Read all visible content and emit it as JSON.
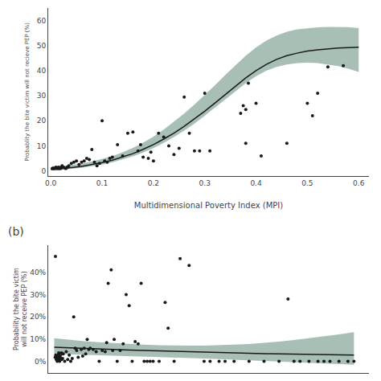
{
  "chart_data": [
    {
      "type": "scatter",
      "xlabel": "Multidimensional Poverty Index (MPI)",
      "ylabel": "Probablity the bite victim will not recieve PEP (%)",
      "xlim": [
        -0.005,
        0.62
      ],
      "ylim": [
        -2,
        65
      ],
      "xticks": [
        {
          "value": 0.0,
          "label": "0.0"
        },
        0.1,
        0.2,
        0.3,
        0.4,
        0.5,
        0.6
      ],
      "yticks": [
        0,
        10,
        20,
        30,
        40,
        50,
        60
      ],
      "grid": false,
      "series": [
        {
          "type": "band",
          "color": "#a8bfb5",
          "x": [
            0.0,
            0.02,
            0.04,
            0.06,
            0.08,
            0.1,
            0.12,
            0.14,
            0.16,
            0.18,
            0.2,
            0.22,
            0.24,
            0.26,
            0.28,
            0.3,
            0.32,
            0.34,
            0.36,
            0.38,
            0.4,
            0.42,
            0.44,
            0.46,
            0.48,
            0.5,
            0.52,
            0.54,
            0.56,
            0.58,
            0.6
          ],
          "lower": [
            0.3,
            0.5,
            0.8,
            1.2,
            1.8,
            2.5,
            3.4,
            4.5,
            5.8,
            7.3,
            9.1,
            11.2,
            13.5,
            16.1,
            18.9,
            22.0,
            25.2,
            28.5,
            31.8,
            35.0,
            37.8,
            40.0,
            41.5,
            42.5,
            43.0,
            43.2,
            43.0,
            42.5,
            41.8,
            40.8,
            39.5
          ],
          "upper": [
            1.2,
            1.7,
            2.2,
            2.9,
            3.7,
            4.7,
            5.9,
            7.4,
            9.2,
            11.3,
            13.7,
            16.5,
            19.6,
            22.9,
            26.5,
            30.2,
            34.2,
            38.3,
            42.2,
            46.0,
            49.3,
            52.0,
            54.0,
            55.5,
            56.5,
            57.0,
            57.3,
            57.5,
            57.5,
            57.4,
            57.0
          ]
        },
        {
          "type": "line",
          "color": "#1a1a1a",
          "x": [
            0.0,
            0.02,
            0.04,
            0.06,
            0.08,
            0.1,
            0.12,
            0.14,
            0.16,
            0.18,
            0.2,
            0.22,
            0.24,
            0.26,
            0.28,
            0.3,
            0.32,
            0.34,
            0.36,
            0.38,
            0.4,
            0.42,
            0.44,
            0.46,
            0.48,
            0.5,
            0.52,
            0.54,
            0.56,
            0.58,
            0.6
          ],
          "values": [
            0.6,
            0.9,
            1.3,
            1.8,
            2.5,
            3.3,
            4.3,
            5.5,
            6.9,
            8.6,
            10.5,
            12.7,
            15.1,
            17.8,
            20.7,
            23.8,
            27.1,
            30.4,
            33.8,
            37.1,
            40.0,
            42.5,
            44.5,
            46.0,
            47.0,
            47.8,
            48.3,
            48.7,
            49.0,
            49.2,
            49.4
          ]
        },
        {
          "type": "scatter",
          "color": "#1a1a1a",
          "x": [
            0.003,
            0.004,
            0.005,
            0.006,
            0.007,
            0.008,
            0.01,
            0.01,
            0.012,
            0.013,
            0.015,
            0.015,
            0.016,
            0.017,
            0.018,
            0.02,
            0.02,
            0.022,
            0.025,
            0.028,
            0.03,
            0.032,
            0.035,
            0.04,
            0.045,
            0.05,
            0.055,
            0.06,
            0.065,
            0.07,
            0.075,
            0.08,
            0.085,
            0.09,
            0.095,
            0.1,
            0.105,
            0.11,
            0.115,
            0.12,
            0.13,
            0.14,
            0.15,
            0.16,
            0.17,
            0.175,
            0.18,
            0.19,
            0.195,
            0.2,
            0.21,
            0.22,
            0.23,
            0.24,
            0.25,
            0.26,
            0.27,
            0.28,
            0.29,
            0.3,
            0.31,
            0.37,
            0.375,
            0.38,
            0.385,
            0.38,
            0.4,
            0.41,
            0.46,
            0.5,
            0.51,
            0.52,
            0.54,
            0.57
          ],
          "values": [
            1.0,
            1.0,
            1.0,
            1.0,
            1.0,
            1.0,
            1.0,
            1.5,
            1.0,
            1.0,
            1.0,
            1.5,
            1.0,
            1.0,
            1.0,
            1.0,
            1.5,
            2.0,
            1.5,
            1.0,
            1.0,
            1.5,
            2.0,
            3.0,
            3.5,
            4.0,
            2.5,
            3.5,
            4.0,
            5.0,
            4.5,
            8.5,
            3.5,
            2.0,
            3.0,
            20.0,
            4.0,
            3.5,
            5.0,
            5.5,
            10.5,
            6.0,
            15.0,
            15.5,
            8.0,
            10.5,
            5.5,
            5.0,
            7.5,
            4.0,
            15.0,
            13.5,
            10.0,
            6.5,
            9.0,
            29.5,
            15.0,
            8.0,
            8.0,
            31.0,
            8.0,
            23.0,
            26.0,
            24.5,
            35.0,
            11.0,
            27.0,
            6.0,
            11.0,
            27.0,
            22.0,
            31.0,
            41.5,
            42.0
          ]
        }
      ]
    },
    {
      "type": "scatter",
      "ylabel": "Probability the bite victim\nwill not receive PEP (%)",
      "xlim": [
        -0.02,
        1.05
      ],
      "ylim": [
        -5,
        52
      ],
      "yticks": [
        {
          "value": 0,
          "label": "0%"
        },
        {
          "value": 10,
          "label": "10%"
        },
        {
          "value": 20,
          "label": "20%"
        },
        {
          "value": 30,
          "label": "30%"
        },
        {
          "value": 40,
          "label": "40%"
        }
      ],
      "tick_labels": "y",
      "grid": false,
      "annotations": [
        {
          "text": "(b)"
        }
      ],
      "series": [
        {
          "type": "band",
          "color": "#a8bfb5",
          "x": [
            0.0,
            0.05,
            0.1,
            0.15,
            0.2,
            0.25,
            0.3,
            0.35,
            0.4,
            0.45,
            0.5,
            0.55,
            0.6,
            0.65,
            0.7,
            0.75,
            0.8,
            0.85,
            0.9,
            0.95,
            1.0
          ],
          "lower": [
            3.5,
            3.3,
            3.2,
            3.0,
            2.9,
            2.7,
            2.5,
            2.3,
            2.1,
            1.8,
            1.5,
            1.2,
            0.9,
            0.6,
            0.3,
            0.0,
            -0.3,
            -0.6,
            -0.9,
            -1.1,
            -1.3
          ],
          "upper": [
            10.5,
            9.8,
            9.2,
            8.7,
            8.3,
            7.9,
            7.6,
            7.4,
            7.2,
            7.2,
            7.2,
            7.3,
            7.6,
            7.9,
            8.4,
            9.0,
            9.7,
            10.5,
            11.3,
            12.2,
            13.2
          ]
        },
        {
          "type": "line",
          "color": "#1a1a1a",
          "x": [
            0.0,
            0.05,
            0.1,
            0.15,
            0.2,
            0.25,
            0.3,
            0.35,
            0.4,
            0.45,
            0.5,
            0.55,
            0.6,
            0.65,
            0.7,
            0.75,
            0.8,
            0.85,
            0.9,
            0.95,
            1.0
          ],
          "values": [
            6.5,
            6.2,
            5.9,
            5.7,
            5.4,
            5.2,
            5.0,
            4.8,
            4.6,
            4.4,
            4.2,
            4.0,
            3.9,
            3.7,
            3.6,
            3.5,
            3.4,
            3.3,
            3.2,
            3.1,
            3.0
          ]
        },
        {
          "type": "scatter",
          "color": "#1a1a1a",
          "x": [
            0.003,
            0.005,
            0.006,
            0.01,
            0.01,
            0.012,
            0.015,
            0.015,
            0.016,
            0.017,
            0.018,
            0.02,
            0.02,
            0.025,
            0.028,
            0.03,
            0.035,
            0.04,
            0.045,
            0.05,
            0.055,
            0.06,
            0.065,
            0.07,
            0.075,
            0.08,
            0.09,
            0.095,
            0.1,
            0.105,
            0.11,
            0.115,
            0.12,
            0.13,
            0.14,
            0.15,
            0.16,
            0.17,
            0.175,
            0.18,
            0.19,
            0.195,
            0.2,
            0.21,
            0.22,
            0.23,
            0.24,
            0.25,
            0.26,
            0.27,
            0.28,
            0.29,
            0.3,
            0.31,
            0.32,
            0.33,
            0.35,
            0.37,
            0.38,
            0.4,
            0.42,
            0.45,
            0.5,
            0.52,
            0.55,
            0.57,
            0.004,
            0.007,
            0.008,
            0.009,
            0.011,
            0.013,
            0.014,
            0.019,
            0.024,
            0.027
          ],
          "values": [
            2.0,
            3.0,
            2.5,
            1.0,
            0.2,
            1.0,
            4.0,
            1.5,
            3.5,
            2.0,
            0.2,
            2.5,
            1.5,
            1.0,
            1.5,
            3.5,
            0.2,
            4.5,
            1.0,
            3.0,
            0.2,
            1.5,
            20.0,
            6.0,
            5.0,
            2.0,
            5.5,
            2.5,
            6.0,
            3.5,
            10.0,
            5.5,
            6.0,
            5.5,
            4.5,
            0.2,
            5.0,
            4.5,
            8.5,
            35.0,
            41.0,
            5.0,
            10.0,
            0.2,
            5.0,
            8.0,
            30.0,
            25.0,
            0.2,
            9.0,
            8.0,
            35.0,
            0.2,
            0.2,
            0.2,
            0.2,
            0.2,
            26.5,
            15.0,
            0.2,
            46.0,
            43.0,
            0.2,
            0.2,
            0.2,
            0.2,
            47.0,
            1.0,
            1.5,
            2.0,
            1.5,
            2.5,
            3.0,
            2.0,
            4.0,
            3.5
          ]
        },
        {
          "type": "scatter",
          "color": "#1a1a1a",
          "x": [
            0.6,
            0.65,
            0.7,
            0.75,
            0.78,
            0.8,
            0.82,
            0.85,
            0.88,
            0.9,
            0.92,
            0.95,
            0.98,
            1.0
          ],
          "values": [
            0.2,
            0.2,
            0.2,
            0.2,
            28.0,
            0.2,
            0.2,
            0.2,
            0.2,
            0.2,
            0.2,
            0.2,
            0.2,
            0.2
          ]
        }
      ]
    }
  ]
}
